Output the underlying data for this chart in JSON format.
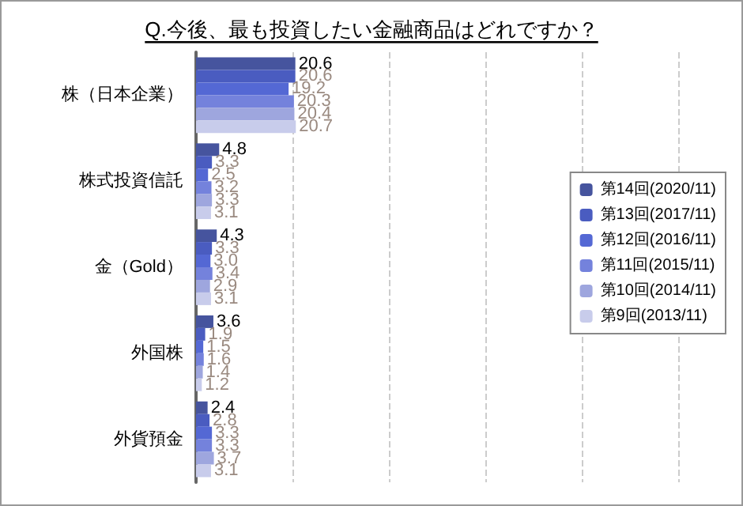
{
  "chart_data": {
    "type": "bar",
    "orientation": "horizontal",
    "title": "Q.今後、最も投資したい金融商品はどれですか？",
    "categories": [
      "株（日本企業）",
      "株式投資信託",
      "金（Gold）",
      "外国株",
      "外貨預金"
    ],
    "series": [
      {
        "name": "第14回(2020/11)",
        "color": "#46549e",
        "values": [
          20.6,
          4.8,
          4.3,
          3.6,
          2.4
        ],
        "value_labels": [
          "20.6",
          "4.8",
          "4.3",
          "3.6",
          "2.4"
        ]
      },
      {
        "name": "第13回(2017/11)",
        "color": "#4a5cc0",
        "values": [
          20.6,
          3.3,
          3.3,
          1.9,
          2.8
        ],
        "value_labels": [
          "20.6",
          "3.3",
          "3.3",
          "1.9",
          "2.8"
        ]
      },
      {
        "name": "第12回(2016/11)",
        "color": "#5468d4",
        "values": [
          19.2,
          2.5,
          3.0,
          1.5,
          3.3
        ],
        "value_labels": [
          "19.2",
          "2.5",
          "3.0",
          "1.5",
          "3.3"
        ]
      },
      {
        "name": "第11回(2015/11)",
        "color": "#7482dc",
        "values": [
          20.3,
          3.2,
          3.4,
          1.6,
          3.3
        ],
        "value_labels": [
          "20.3",
          "3.2",
          "3.4",
          "1.6",
          "3.3"
        ]
      },
      {
        "name": "第10回(2014/11)",
        "color": "#9ea6de",
        "values": [
          20.4,
          3.3,
          2.9,
          1.4,
          3.7
        ],
        "value_labels": [
          "20.4",
          "3.3",
          "2.9",
          "1.4",
          "3.7"
        ]
      },
      {
        "name": "第9回(2013/11)",
        "color": "#c8cceb",
        "values": [
          20.7,
          3.1,
          3.1,
          1.2,
          3.1
        ],
        "value_labels": [
          "20.7",
          "3.1",
          "3.1",
          "1.2",
          "3.1"
        ]
      }
    ],
    "xlim": [
      0,
      100
    ],
    "xticks": [
      {
        "value": 0,
        "label": null
      },
      {
        "value": 20,
        "label": null
      },
      {
        "value": 40,
        "label": null
      },
      {
        "value": 60,
        "label": null
      },
      {
        "value": 80,
        "label": null
      },
      {
        "value": 100,
        "label": null
      }
    ],
    "tick_labels": "y",
    "grid": "x",
    "legend": "right"
  }
}
